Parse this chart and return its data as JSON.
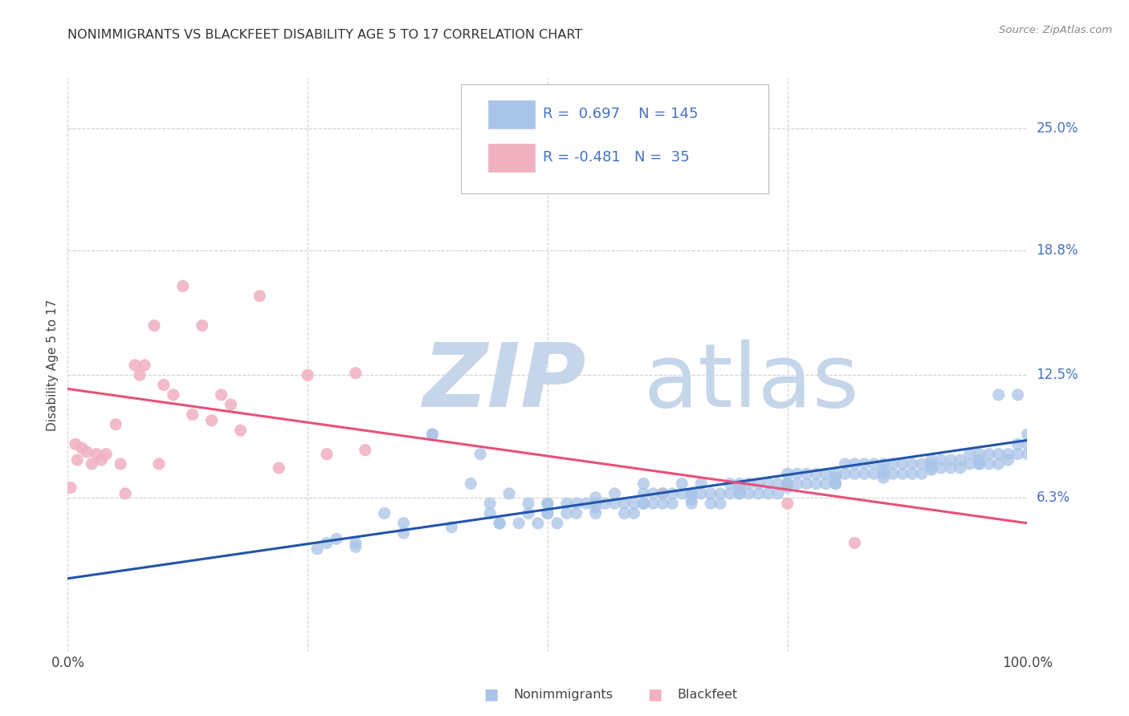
{
  "title": "NONIMMIGRANTS VS BLACKFEET DISABILITY AGE 5 TO 17 CORRELATION CHART",
  "source": "Source: ZipAtlas.com",
  "ylabel": "Disability Age 5 to 17",
  "ytick_labels": [
    "6.3%",
    "12.5%",
    "18.8%",
    "25.0%"
  ],
  "ytick_vals": [
    0.063,
    0.125,
    0.188,
    0.25
  ],
  "xmin": 0.0,
  "xmax": 1.0,
  "ymin": -0.015,
  "ymax": 0.275,
  "blue_R": 0.697,
  "blue_N": 145,
  "pink_R": -0.481,
  "pink_N": 35,
  "blue_color": "#a8c4e8",
  "pink_color": "#f0b0c0",
  "blue_line_color": "#2255aa",
  "pink_line_color": "#e8507a",
  "watermark_zip_color": "#c5d5ea",
  "watermark_atlas_color": "#c5d5ea",
  "blue_line_x0": 0.0,
  "blue_line_y0": 0.022,
  "blue_line_x1": 1.0,
  "blue_line_y1": 0.092,
  "pink_line_x0": 0.0,
  "pink_line_y0": 0.118,
  "pink_line_x1": 1.0,
  "pink_line_y1": 0.05,
  "blue_scatter_x": [
    0.26,
    0.28,
    0.3,
    0.33,
    0.35,
    0.38,
    0.42,
    0.43,
    0.44,
    0.45,
    0.46,
    0.47,
    0.48,
    0.48,
    0.49,
    0.5,
    0.5,
    0.51,
    0.52,
    0.52,
    0.53,
    0.53,
    0.54,
    0.55,
    0.55,
    0.56,
    0.57,
    0.57,
    0.58,
    0.58,
    0.59,
    0.59,
    0.6,
    0.6,
    0.61,
    0.61,
    0.62,
    0.62,
    0.63,
    0.63,
    0.64,
    0.64,
    0.65,
    0.65,
    0.66,
    0.66,
    0.67,
    0.67,
    0.68,
    0.68,
    0.69,
    0.69,
    0.7,
    0.7,
    0.71,
    0.71,
    0.72,
    0.72,
    0.73,
    0.73,
    0.74,
    0.74,
    0.75,
    0.75,
    0.76,
    0.76,
    0.77,
    0.77,
    0.78,
    0.78,
    0.79,
    0.79,
    0.8,
    0.8,
    0.81,
    0.81,
    0.82,
    0.82,
    0.83,
    0.83,
    0.84,
    0.84,
    0.85,
    0.85,
    0.86,
    0.86,
    0.87,
    0.87,
    0.88,
    0.88,
    0.89,
    0.89,
    0.9,
    0.9,
    0.91,
    0.91,
    0.92,
    0.92,
    0.93,
    0.93,
    0.94,
    0.94,
    0.95,
    0.95,
    0.96,
    0.96,
    0.97,
    0.97,
    0.98,
    0.98,
    0.99,
    0.99,
    1.0,
    1.0,
    0.99,
    0.38,
    0.44,
    0.5,
    0.55,
    0.6,
    0.65,
    0.7,
    0.75,
    0.8,
    0.85,
    0.9,
    0.95,
    1.0,
    0.97,
    0.27,
    0.3,
    0.35,
    0.4,
    0.45,
    0.5,
    0.55,
    0.6,
    0.65,
    0.7,
    0.75,
    0.8,
    0.85,
    0.9,
    0.95
  ],
  "blue_scatter_y": [
    0.037,
    0.042,
    0.038,
    0.055,
    0.05,
    0.095,
    0.07,
    0.085,
    0.055,
    0.05,
    0.065,
    0.05,
    0.06,
    0.055,
    0.05,
    0.06,
    0.055,
    0.05,
    0.06,
    0.055,
    0.055,
    0.06,
    0.06,
    0.06,
    0.055,
    0.06,
    0.065,
    0.06,
    0.06,
    0.055,
    0.06,
    0.055,
    0.06,
    0.07,
    0.065,
    0.06,
    0.065,
    0.06,
    0.065,
    0.06,
    0.07,
    0.065,
    0.065,
    0.06,
    0.07,
    0.065,
    0.065,
    0.06,
    0.065,
    0.06,
    0.07,
    0.065,
    0.07,
    0.065,
    0.07,
    0.065,
    0.07,
    0.065,
    0.07,
    0.065,
    0.07,
    0.065,
    0.075,
    0.07,
    0.075,
    0.07,
    0.075,
    0.07,
    0.075,
    0.07,
    0.075,
    0.07,
    0.075,
    0.07,
    0.08,
    0.075,
    0.08,
    0.075,
    0.08,
    0.075,
    0.08,
    0.075,
    0.08,
    0.075,
    0.08,
    0.075,
    0.08,
    0.075,
    0.08,
    0.075,
    0.08,
    0.075,
    0.082,
    0.078,
    0.082,
    0.078,
    0.082,
    0.078,
    0.082,
    0.078,
    0.085,
    0.08,
    0.085,
    0.08,
    0.085,
    0.08,
    0.085,
    0.08,
    0.085,
    0.082,
    0.09,
    0.085,
    0.095,
    0.09,
    0.115,
    0.095,
    0.06,
    0.06,
    0.063,
    0.065,
    0.065,
    0.068,
    0.07,
    0.073,
    0.077,
    0.08,
    0.082,
    0.085,
    0.115,
    0.04,
    0.04,
    0.045,
    0.048,
    0.05,
    0.055,
    0.058,
    0.06,
    0.062,
    0.065,
    0.068,
    0.07,
    0.073,
    0.077,
    0.08
  ],
  "pink_scatter_x": [
    0.003,
    0.008,
    0.01,
    0.015,
    0.02,
    0.025,
    0.03,
    0.035,
    0.04,
    0.05,
    0.055,
    0.06,
    0.07,
    0.075,
    0.08,
    0.09,
    0.095,
    0.1,
    0.11,
    0.12,
    0.13,
    0.14,
    0.15,
    0.16,
    0.17,
    0.18,
    0.2,
    0.22,
    0.25,
    0.27,
    0.3,
    0.31,
    0.62,
    0.75,
    0.82
  ],
  "pink_scatter_y": [
    0.068,
    0.09,
    0.082,
    0.088,
    0.086,
    0.08,
    0.085,
    0.082,
    0.085,
    0.1,
    0.08,
    0.065,
    0.13,
    0.125,
    0.13,
    0.15,
    0.08,
    0.12,
    0.115,
    0.17,
    0.105,
    0.15,
    0.102,
    0.115,
    0.11,
    0.097,
    0.165,
    0.078,
    0.125,
    0.085,
    0.126,
    0.087,
    0.065,
    0.06,
    0.04
  ]
}
